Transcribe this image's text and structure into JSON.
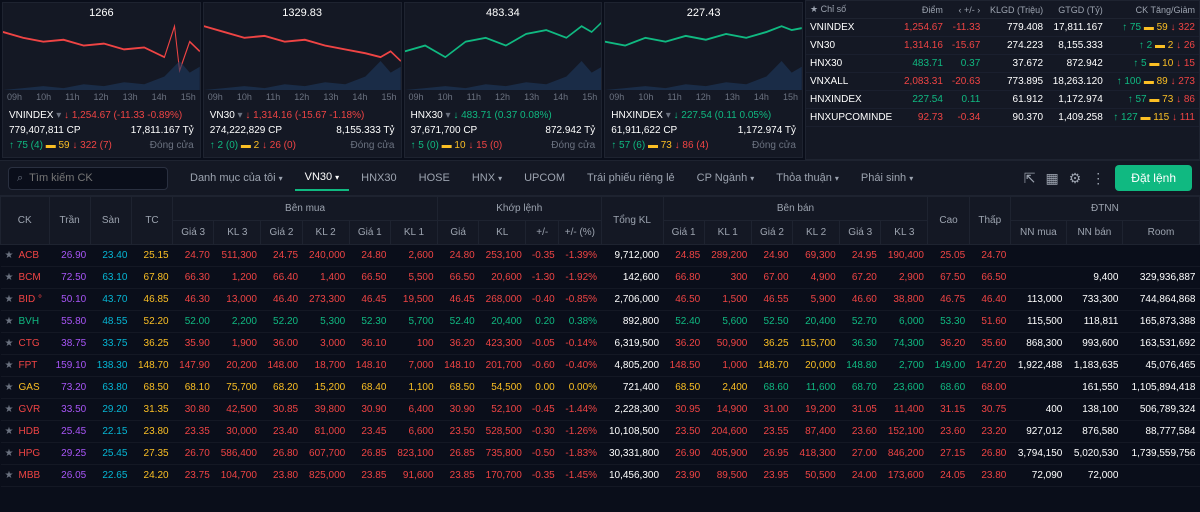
{
  "charts": [
    {
      "name": "VNINDEX",
      "peak": "1266",
      "price": "1,254.67",
      "change": "(-11.33 -0.89%)",
      "priceColor": "red",
      "vol": "779,407,811 CP",
      "val": "17,811.167 Tỷ",
      "up": "75 (4)",
      "flat": "59",
      "down": "322 (7)",
      "status": "Đóng cửa"
    },
    {
      "name": "VN30",
      "peak": "1329.83",
      "price": "1,314.16",
      "change": "(-15.67 -1.18%)",
      "priceColor": "red",
      "vol": "274,222,829 CP",
      "val": "8,155.333 Tỷ",
      "up": "2 (0)",
      "flat": "2",
      "down": "26 (0)",
      "status": "Đóng cửa"
    },
    {
      "name": "HNX30",
      "peak": "483.34",
      "price": "483.71",
      "change": "(0.37 0.08%)",
      "priceColor": "green",
      "vol": "37,671,700 CP",
      "val": "872.942 Tỷ",
      "up": "5 (0)",
      "flat": "10",
      "down": "15 (0)",
      "status": "Đóng cửa"
    },
    {
      "name": "HNXINDEX",
      "peak": "227.43",
      "price": "227.54",
      "change": "(0.11 0.05%)",
      "priceColor": "green",
      "vol": "61,911,622 CP",
      "val": "1,172.974 Tỷ",
      "up": "57 (6)",
      "flat": "73",
      "down": "86 (4)",
      "status": "Đóng cửa"
    }
  ],
  "chartTimes": [
    "09h",
    "10h",
    "11h",
    "12h",
    "13h",
    "14h",
    "15h"
  ],
  "chartPaths": [
    "M0,15 L20,18 L40,20 L60,19 L80,22 L100,21 L120,24 L140,23 L160,28 L170,12 L175,35 L185,20 L195,25",
    "M0,12 L20,15 L40,18 L60,17 L80,20 L100,19 L120,22 L140,24 L160,26 L175,28 L185,25 L195,30",
    "M0,25 L20,22 L40,28 L60,20 L80,18 L100,22 L120,16 L140,14 L160,18 L175,12 L185,15 L195,10",
    "M0,20 L20,22 L40,18 L60,20 L80,17 L100,19 L120,16 L140,18 L160,15 L175,12 L185,14 L195,13"
  ],
  "chartColors": [
    "#ef4444",
    "#ef4444",
    "#10b981",
    "#10b981"
  ],
  "indexHeaders": {
    "h0": "★ Chỉ số",
    "h1": "Điểm",
    "h2": "‹ +/- ›",
    "h3": "KLGD (Triệu)",
    "h4": "GTGD (Tỷ)",
    "h5": "CK Tăng/Giảm"
  },
  "indices": [
    {
      "n": "VNINDEX",
      "p": "1,254.67",
      "c": "-11.33",
      "pc": "red",
      "v": "779.408",
      "val": "17,811.167",
      "u": "75",
      "f": "59",
      "d": "322"
    },
    {
      "n": "VN30",
      "p": "1,314.16",
      "c": "-15.67",
      "pc": "red",
      "v": "274.223",
      "val": "8,155.333",
      "u": "2",
      "f": "2",
      "d": "26"
    },
    {
      "n": "HNX30",
      "p": "483.71",
      "c": "0.37",
      "pc": "green",
      "v": "37.672",
      "val": "872.942",
      "u": "5",
      "f": "10",
      "d": "15"
    },
    {
      "n": "VNXALL",
      "p": "2,083.31",
      "c": "-20.63",
      "pc": "red",
      "v": "773.895",
      "val": "18,263.120",
      "u": "100",
      "f": "89",
      "d": "273"
    },
    {
      "n": "HNXINDEX",
      "p": "227.54",
      "c": "0.11",
      "pc": "green",
      "v": "61.912",
      "val": "1,172.974",
      "u": "57",
      "f": "73",
      "d": "86"
    },
    {
      "n": "HNXUPCOMINDE",
      "p": "92.73",
      "c": "-0.34",
      "pc": "red",
      "v": "90.370",
      "val": "1,409.258",
      "u": "127",
      "f": "115",
      "d": "111"
    }
  ],
  "toolbar": {
    "searchPlaceholder": "Tìm kiếm CK",
    "orderBtn": "Đặt lệnh"
  },
  "tabs": [
    {
      "l": "Danh mục của tôi",
      "chev": true
    },
    {
      "l": "VN30",
      "chev": true,
      "active": true
    },
    {
      "l": "HNX30"
    },
    {
      "l": "HOSE"
    },
    {
      "l": "HNX",
      "chev": true
    },
    {
      "l": "UPCOM"
    },
    {
      "l": "Trái phiếu riêng lẻ"
    },
    {
      "l": "CP Ngành",
      "chev": true
    },
    {
      "l": "Thỏa thuận",
      "chev": true
    },
    {
      "l": "Phái sinh",
      "chev": true
    }
  ],
  "tableHeaders": {
    "ck": "CK",
    "tran": "Trần",
    "san": "Sàn",
    "tc": "TC",
    "benmua": "Bên mua",
    "gia3": "Giá 3",
    "kl3": "KL 3",
    "gia2": "Giá 2",
    "kl2": "KL 2",
    "gia1": "Giá 1",
    "kl1": "KL 1",
    "khoplenh": "Khớp lệnh",
    "gia": "Giá",
    "kl": "KL",
    "chg": "+/-",
    "pct": "+/- (%)",
    "tongkl": "Tổng KL",
    "benban": "Bên bán",
    "cao": "Cao",
    "thap": "Thấp",
    "dtnn": "ĐTNN",
    "nnmua": "NN mua",
    "nnban": "NN bán",
    "room": "Room"
  },
  "rows": [
    {
      "ck": "ACB",
      "ckc": "red",
      "tr": "26.90",
      "s": "23.40",
      "tc": "25.15",
      "bm": [
        [
          "24.70",
          "511,300"
        ],
        [
          "24.75",
          "240,000"
        ],
        [
          "24.80",
          "2,600"
        ]
      ],
      "kl": [
        "24.80",
        "253,100",
        "-0.35",
        "-1.39%"
      ],
      "klc": "red",
      "tk": "9,712,000",
      "bb": [
        [
          "24.85",
          "289,200"
        ],
        [
          "24.90",
          "69,300"
        ],
        [
          "24.95",
          "190,400"
        ]
      ],
      "cao": "25.05",
      "caoc": "red",
      "th": "24.70",
      "thc": "red",
      "nm": "",
      "nb": "",
      "rm": ""
    },
    {
      "ck": "BCM",
      "ckc": "red",
      "tr": "72.50",
      "s": "63.10",
      "tc": "67.80",
      "bm": [
        [
          "66.30",
          "1,200"
        ],
        [
          "66.40",
          "1,400"
        ],
        [
          "66.50",
          "5,500"
        ]
      ],
      "kl": [
        "66.50",
        "20,600",
        "-1.30",
        "-1.92%"
      ],
      "klc": "red",
      "tk": "142,600",
      "bb": [
        [
          "66.80",
          "300"
        ],
        [
          "67.00",
          "4,900"
        ],
        [
          "67.20",
          "2,900"
        ]
      ],
      "cao": "67.50",
      "caoc": "red",
      "th": "66.50",
      "thc": "red",
      "nm": "",
      "nb": "9,400",
      "rm": "329,936,887"
    },
    {
      "ck": "BID °",
      "ckc": "red",
      "tr": "50.10",
      "s": "43.70",
      "tc": "46.85",
      "bm": [
        [
          "46.30",
          "13,000"
        ],
        [
          "46.40",
          "273,300"
        ],
        [
          "46.45",
          "19,500"
        ]
      ],
      "kl": [
        "46.45",
        "268,000",
        "-0.40",
        "-0.85%"
      ],
      "klc": "red",
      "tk": "2,706,000",
      "bb": [
        [
          "46.50",
          "1,500"
        ],
        [
          "46.55",
          "5,900"
        ],
        [
          "46.60",
          "38,800"
        ]
      ],
      "cao": "46.75",
      "caoc": "red",
      "th": "46.40",
      "thc": "red",
      "nm": "113,000",
      "nb": "733,300",
      "rm": "744,864,868"
    },
    {
      "ck": "BVH",
      "ckc": "green",
      "tr": "55.80",
      "s": "48.55",
      "tc": "52.20",
      "bm": [
        [
          "52.00",
          "2,200"
        ],
        [
          "52.20",
          "5,300"
        ],
        [
          "52.30",
          "5,700"
        ]
      ],
      "kl": [
        "52.40",
        "20,400",
        "0.20",
        "0.38%"
      ],
      "klc": "green",
      "tk": "892,800",
      "bb": [
        [
          "52.40",
          "5,600"
        ],
        [
          "52.50",
          "20,400"
        ],
        [
          "52.70",
          "6,000"
        ]
      ],
      "cao": "53.30",
      "caoc": "green",
      "th": "51.60",
      "thc": "red",
      "nm": "115,500",
      "nb": "118,811",
      "rm": "165,873,388"
    },
    {
      "ck": "CTG",
      "ckc": "red",
      "tr": "38.75",
      "s": "33.75",
      "tc": "36.25",
      "bm": [
        [
          "35.90",
          "1,900"
        ],
        [
          "36.00",
          "3,000"
        ],
        [
          "36.10",
          "100"
        ]
      ],
      "kl": [
        "36.20",
        "423,300",
        "-0.05",
        "-0.14%"
      ],
      "klc": "red",
      "tk": "6,319,500",
      "bb": [
        [
          "36.20",
          "50,900"
        ],
        [
          "36.25",
          "115,700",
          "yellow"
        ],
        [
          "36.30",
          "74,300",
          "green"
        ]
      ],
      "cao": "36.20",
      "caoc": "red",
      "th": "35.60",
      "thc": "red",
      "nm": "868,300",
      "nb": "993,600",
      "rm": "163,531,692"
    },
    {
      "ck": "FPT",
      "ckc": "red",
      "tr": "159.10",
      "s": "138.30",
      "tc": "148.70",
      "bm": [
        [
          "147.90",
          "20,200"
        ],
        [
          "148.00",
          "18,700"
        ],
        [
          "148.10",
          "7,000"
        ]
      ],
      "kl": [
        "148.10",
        "201,700",
        "-0.60",
        "-0.40%"
      ],
      "klc": "red",
      "tk": "4,805,200",
      "bb": [
        [
          "148.50",
          "1,000"
        ],
        [
          "148.70",
          "20,000",
          "yellow"
        ],
        [
          "148.80",
          "2,700",
          "green"
        ]
      ],
      "cao": "149.00",
      "caoc": "green",
      "th": "147.20",
      "thc": "red",
      "nm": "1,922,488",
      "nb": "1,183,635",
      "rm": "45,076,465"
    },
    {
      "ck": "GAS",
      "ckc": "yellow",
      "tr": "73.20",
      "s": "63.80",
      "tc": "68.50",
      "bm": [
        [
          "68.10",
          "75,700"
        ],
        [
          "68.20",
          "15,200"
        ],
        [
          "68.40",
          "1,100"
        ]
      ],
      "kl": [
        "68.50",
        "54,500",
        "0.00",
        "0.00%"
      ],
      "klc": "yellow",
      "tk": "721,400",
      "bb": [
        [
          "68.50",
          "2,400",
          "yellow"
        ],
        [
          "68.60",
          "11,600",
          "green"
        ],
        [
          "68.70",
          "23,600",
          "green"
        ]
      ],
      "cao": "68.60",
      "caoc": "green",
      "th": "68.00",
      "thc": "red",
      "nm": "",
      "nb": "161,550",
      "rm": "1,105,894,418"
    },
    {
      "ck": "GVR",
      "ckc": "red",
      "tr": "33.50",
      "s": "29.20",
      "tc": "31.35",
      "bm": [
        [
          "30.80",
          "42,500"
        ],
        [
          "30.85",
          "39,800"
        ],
        [
          "30.90",
          "6,400"
        ]
      ],
      "kl": [
        "30.90",
        "52,100",
        "-0.45",
        "-1.44%"
      ],
      "klc": "red",
      "tk": "2,228,300",
      "bb": [
        [
          "30.95",
          "14,900"
        ],
        [
          "31.00",
          "19,200"
        ],
        [
          "31.05",
          "11,400"
        ]
      ],
      "cao": "31.15",
      "caoc": "red",
      "th": "30.75",
      "thc": "red",
      "nm": "400",
      "nb": "138,100",
      "rm": "506,789,324"
    },
    {
      "ck": "HDB",
      "ckc": "red",
      "tr": "25.45",
      "s": "22.15",
      "tc": "23.80",
      "bm": [
        [
          "23.35",
          "30,000"
        ],
        [
          "23.40",
          "81,000"
        ],
        [
          "23.45",
          "6,600"
        ]
      ],
      "kl": [
        "23.50",
        "528,500",
        "-0.30",
        "-1.26%"
      ],
      "klc": "red",
      "tk": "10,108,500",
      "bb": [
        [
          "23.50",
          "204,600"
        ],
        [
          "23.55",
          "87,400"
        ],
        [
          "23.60",
          "152,100"
        ]
      ],
      "cao": "23.60",
      "caoc": "red",
      "th": "23.20",
      "thc": "red",
      "nm": "927,012",
      "nb": "876,580",
      "rm": "88,777,584"
    },
    {
      "ck": "HPG",
      "ckc": "red",
      "tr": "29.25",
      "s": "25.45",
      "tc": "27.35",
      "bm": [
        [
          "26.70",
          "586,400"
        ],
        [
          "26.80",
          "607,700"
        ],
        [
          "26.85",
          "823,100"
        ]
      ],
      "kl": [
        "26.85",
        "735,800",
        "-0.50",
        "-1.83%"
      ],
      "klc": "red",
      "tk": "30,331,800",
      "bb": [
        [
          "26.90",
          "405,900"
        ],
        [
          "26.95",
          "418,300"
        ],
        [
          "27.00",
          "846,200"
        ]
      ],
      "cao": "27.15",
      "caoc": "red",
      "th": "26.80",
      "thc": "red",
      "nm": "3,794,150",
      "nb": "5,020,530",
      "rm": "1,739,559,756"
    },
    {
      "ck": "MBB",
      "ckc": "red",
      "tr": "26.05",
      "s": "22.65",
      "tc": "24.20",
      "bm": [
        [
          "23.75",
          "104,700"
        ],
        [
          "23.80",
          "825,000"
        ],
        [
          "23.85",
          "91,600"
        ]
      ],
      "kl": [
        "23.85",
        "170,700",
        "-0.35",
        "-1.45%"
      ],
      "klc": "red",
      "tk": "10,456,300",
      "bb": [
        [
          "23.90",
          "89,500"
        ],
        [
          "23.95",
          "50,500"
        ],
        [
          "24.00",
          "173,600"
        ]
      ],
      "cao": "24.05",
      "caoc": "red",
      "th": "23.80",
      "thc": "red",
      "nm": "72,090",
      "nb": "72,000",
      "rm": ""
    }
  ],
  "colors": {
    "tran": "#a855f7",
    "san": "#06b6d4",
    "tc": "#fbbf24"
  }
}
